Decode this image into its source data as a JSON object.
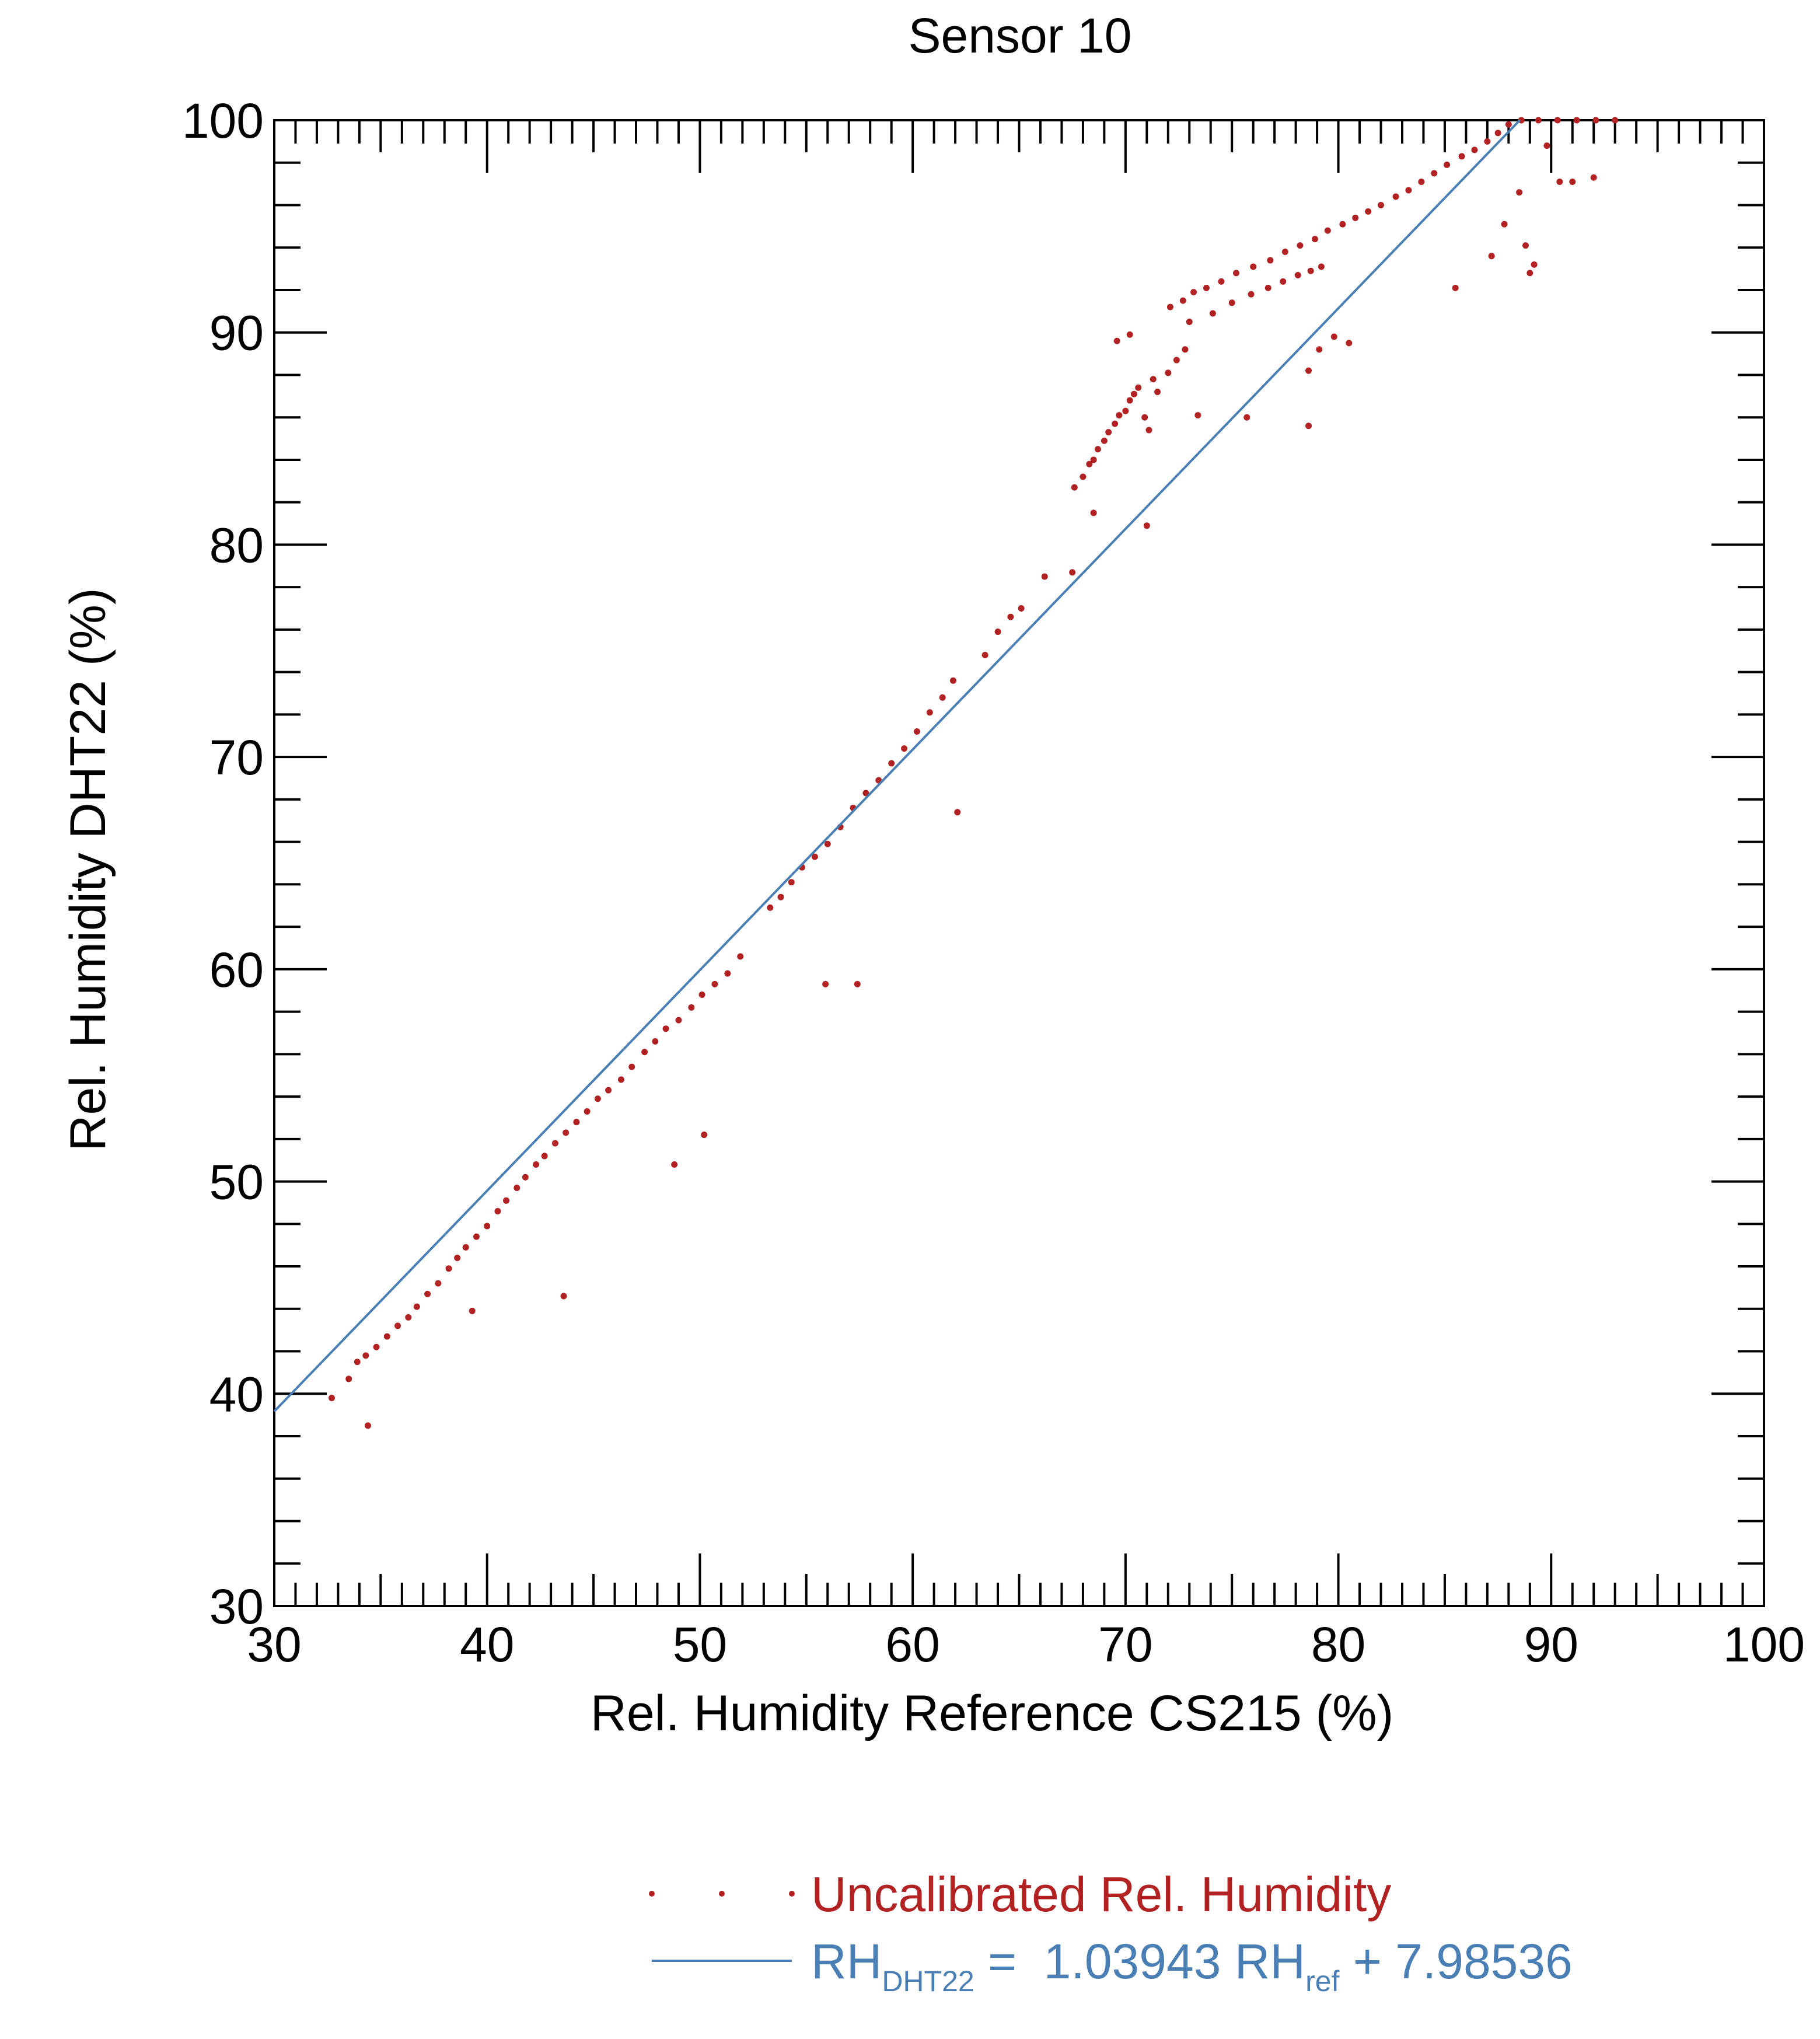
{
  "chart_data": {
    "type": "scatter",
    "title": "Sensor 10",
    "xlabel": "Rel. Humidity Reference CS215 (%)",
    "ylabel": "Rel. Humidity DHT22 (%)",
    "xlim": [
      30,
      100
    ],
    "ylim": [
      30,
      100
    ],
    "x_ticks": [
      "30",
      "40",
      "50",
      "60",
      "70",
      "80",
      "90",
      "100"
    ],
    "y_ticks": [
      "30",
      "40",
      "50",
      "60",
      "70",
      "80",
      "90",
      "100"
    ],
    "grid": false,
    "legend_position": "bottom-right, below plot",
    "series": [
      {
        "name": "Uncalibrated Rel. Humidity",
        "kind": "scatter",
        "color": "#b22222",
        "points": [
          [
            32.7,
            39.8
          ],
          [
            33.5,
            40.7
          ],
          [
            33.9,
            41.5
          ],
          [
            34.3,
            41.8
          ],
          [
            34.4,
            38.5
          ],
          [
            34.8,
            42.2
          ],
          [
            35.3,
            42.7
          ],
          [
            35.8,
            43.2
          ],
          [
            36.3,
            43.6
          ],
          [
            36.7,
            44.1
          ],
          [
            37.2,
            44.7
          ],
          [
            37.7,
            45.2
          ],
          [
            38.2,
            45.9
          ],
          [
            38.6,
            46.4
          ],
          [
            39.0,
            46.9
          ],
          [
            39.3,
            43.9
          ],
          [
            39.5,
            47.4
          ],
          [
            40.0,
            47.9
          ],
          [
            40.5,
            48.6
          ],
          [
            40.9,
            49.1
          ],
          [
            41.4,
            49.7
          ],
          [
            41.8,
            50.2
          ],
          [
            42.3,
            50.8
          ],
          [
            42.7,
            51.2
          ],
          [
            43.2,
            51.8
          ],
          [
            43.7,
            52.3
          ],
          [
            43.6,
            44.6
          ],
          [
            44.2,
            52.8
          ],
          [
            44.7,
            53.3
          ],
          [
            45.2,
            53.9
          ],
          [
            45.7,
            54.3
          ],
          [
            46.3,
            54.8
          ],
          [
            46.8,
            55.4
          ],
          [
            47.4,
            56.1
          ],
          [
            47.9,
            56.6
          ],
          [
            48.4,
            57.2
          ],
          [
            48.8,
            50.8
          ],
          [
            49.0,
            57.6
          ],
          [
            49.6,
            58.2
          ],
          [
            50.1,
            58.8
          ],
          [
            50.2,
            52.2
          ],
          [
            50.7,
            59.3
          ],
          [
            51.3,
            59.8
          ],
          [
            51.9,
            60.6
          ],
          [
            53.3,
            62.9
          ],
          [
            53.8,
            63.4
          ],
          [
            54.3,
            64.1
          ],
          [
            54.8,
            64.8
          ],
          [
            55.4,
            65.3
          ],
          [
            55.9,
            59.3
          ],
          [
            56.0,
            65.9
          ],
          [
            56.6,
            66.7
          ],
          [
            57.2,
            67.6
          ],
          [
            57.4,
            59.3
          ],
          [
            57.8,
            68.3
          ],
          [
            58.4,
            68.9
          ],
          [
            59.0,
            69.7
          ],
          [
            59.6,
            70.4
          ],
          [
            60.2,
            71.2
          ],
          [
            60.8,
            72.1
          ],
          [
            61.4,
            72.8
          ],
          [
            61.9,
            73.6
          ],
          [
            62.1,
            67.4
          ],
          [
            63.4,
            74.8
          ],
          [
            64.0,
            75.9
          ],
          [
            64.6,
            76.6
          ],
          [
            65.1,
            77.0
          ],
          [
            66.2,
            78.5
          ],
          [
            67.5,
            78.7
          ],
          [
            67.6,
            82.7
          ],
          [
            68.0,
            83.2
          ],
          [
            68.3,
            83.8
          ],
          [
            68.5,
            84.0
          ],
          [
            68.7,
            84.5
          ],
          [
            69.0,
            84.9
          ],
          [
            69.2,
            85.3
          ],
          [
            69.5,
            85.7
          ],
          [
            69.7,
            86.1
          ],
          [
            70.0,
            86.3
          ],
          [
            70.2,
            86.8
          ],
          [
            70.4,
            87.1
          ],
          [
            70.6,
            87.4
          ],
          [
            70.9,
            86.0
          ],
          [
            71.1,
            85.4
          ],
          [
            71.3,
            87.8
          ],
          [
            71.0,
            80.9
          ],
          [
            68.5,
            81.5
          ],
          [
            69.6,
            89.6
          ],
          [
            70.2,
            89.9
          ],
          [
            71.5,
            87.2
          ],
          [
            72.0,
            88.1
          ],
          [
            72.4,
            88.7
          ],
          [
            72.8,
            89.2
          ],
          [
            73.4,
            86.1
          ],
          [
            72.1,
            91.2
          ],
          [
            72.7,
            91.5
          ],
          [
            73.2,
            91.9
          ],
          [
            73.8,
            92.1
          ],
          [
            74.5,
            92.4
          ],
          [
            75.2,
            92.8
          ],
          [
            75.7,
            86.0
          ],
          [
            76.0,
            93.1
          ],
          [
            76.8,
            93.4
          ],
          [
            77.5,
            93.8
          ],
          [
            78.2,
            94.1
          ],
          [
            78.9,
            94.4
          ],
          [
            79.5,
            94.8
          ],
          [
            80.2,
            95.1
          ],
          [
            80.8,
            95.4
          ],
          [
            81.4,
            95.7
          ],
          [
            82.0,
            96.0
          ],
          [
            82.7,
            96.4
          ],
          [
            83.3,
            96.7
          ],
          [
            83.9,
            97.1
          ],
          [
            84.5,
            97.5
          ],
          [
            85.1,
            97.9
          ],
          [
            85.8,
            98.3
          ],
          [
            86.4,
            98.6
          ],
          [
            87.0,
            99.0
          ],
          [
            87.5,
            99.4
          ],
          [
            88.0,
            99.8
          ],
          [
            88.6,
            100.0
          ],
          [
            89.4,
            100.0
          ],
          [
            90.3,
            100.0
          ],
          [
            91.2,
            100.0
          ],
          [
            92.1,
            100.0
          ],
          [
            93.0,
            100.0
          ],
          [
            73.0,
            90.5
          ],
          [
            74.1,
            90.9
          ],
          [
            75.0,
            91.4
          ],
          [
            75.9,
            91.8
          ],
          [
            76.7,
            92.1
          ],
          [
            77.4,
            92.4
          ],
          [
            78.1,
            92.7
          ],
          [
            78.7,
            92.9
          ],
          [
            79.2,
            93.1
          ],
          [
            78.6,
            85.6
          ],
          [
            78.6,
            88.2
          ],
          [
            79.1,
            89.2
          ],
          [
            79.8,
            89.8
          ],
          [
            80.5,
            89.5
          ],
          [
            85.5,
            92.1
          ],
          [
            87.2,
            93.6
          ],
          [
            87.8,
            95.1
          ],
          [
            88.5,
            96.6
          ],
          [
            88.8,
            94.1
          ],
          [
            89.0,
            92.8
          ],
          [
            89.2,
            93.2
          ],
          [
            89.8,
            98.8
          ],
          [
            90.4,
            97.1
          ],
          [
            91.0,
            97.1
          ],
          [
            92.0,
            97.3
          ]
        ]
      },
      {
        "name": "RH_DHT22 = 1.03943 RH_ref + 7.98536",
        "kind": "line",
        "color": "#4a7fb5",
        "slope": 1.03943,
        "intercept": 7.98536
      }
    ],
    "legend": {
      "scatter_label": "Uncalibrated Rel. Humidity",
      "line_label_main": "RH",
      "line_label_sub1": "DHT22",
      "line_label_eq": " =  1.03943 RH",
      "line_label_sub2": "ref",
      "line_label_tail": " + 7.98536"
    }
  }
}
